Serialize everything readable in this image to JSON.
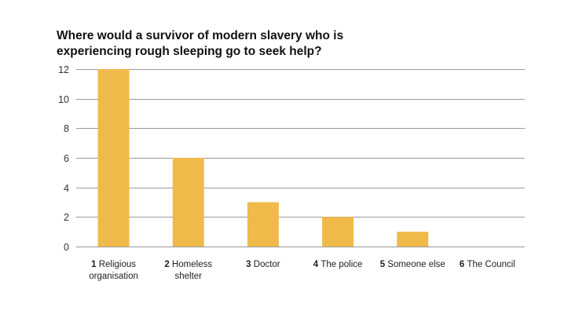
{
  "chart_data": {
    "type": "bar",
    "title_lines": [
      "Where would a survivor of modern slavery who is",
      "experiencing rough sleeping go to seek help?"
    ],
    "categories": [
      {
        "num": "1",
        "label_lines": [
          "Religious",
          "organisation"
        ]
      },
      {
        "num": "2",
        "label_lines": [
          "Homeless",
          "shelter"
        ]
      },
      {
        "num": "3",
        "label_lines": [
          "Doctor"
        ]
      },
      {
        "num": "4",
        "label_lines": [
          "The police"
        ]
      },
      {
        "num": "5",
        "label_lines": [
          "Someone else"
        ]
      },
      {
        "num": "6",
        "label_lines": [
          "The Council"
        ]
      }
    ],
    "values": [
      12,
      6,
      3,
      2,
      1,
      0
    ],
    "ylim": [
      0,
      12
    ],
    "yticks": [
      0,
      2,
      4,
      6,
      8,
      10,
      12
    ],
    "ytick_labels": [
      "0",
      "2",
      "4",
      "6",
      "8",
      "10",
      "12"
    ],
    "grid": true,
    "bar_color": "#F0BA4A",
    "grid_color": "#9a9a9a"
  }
}
